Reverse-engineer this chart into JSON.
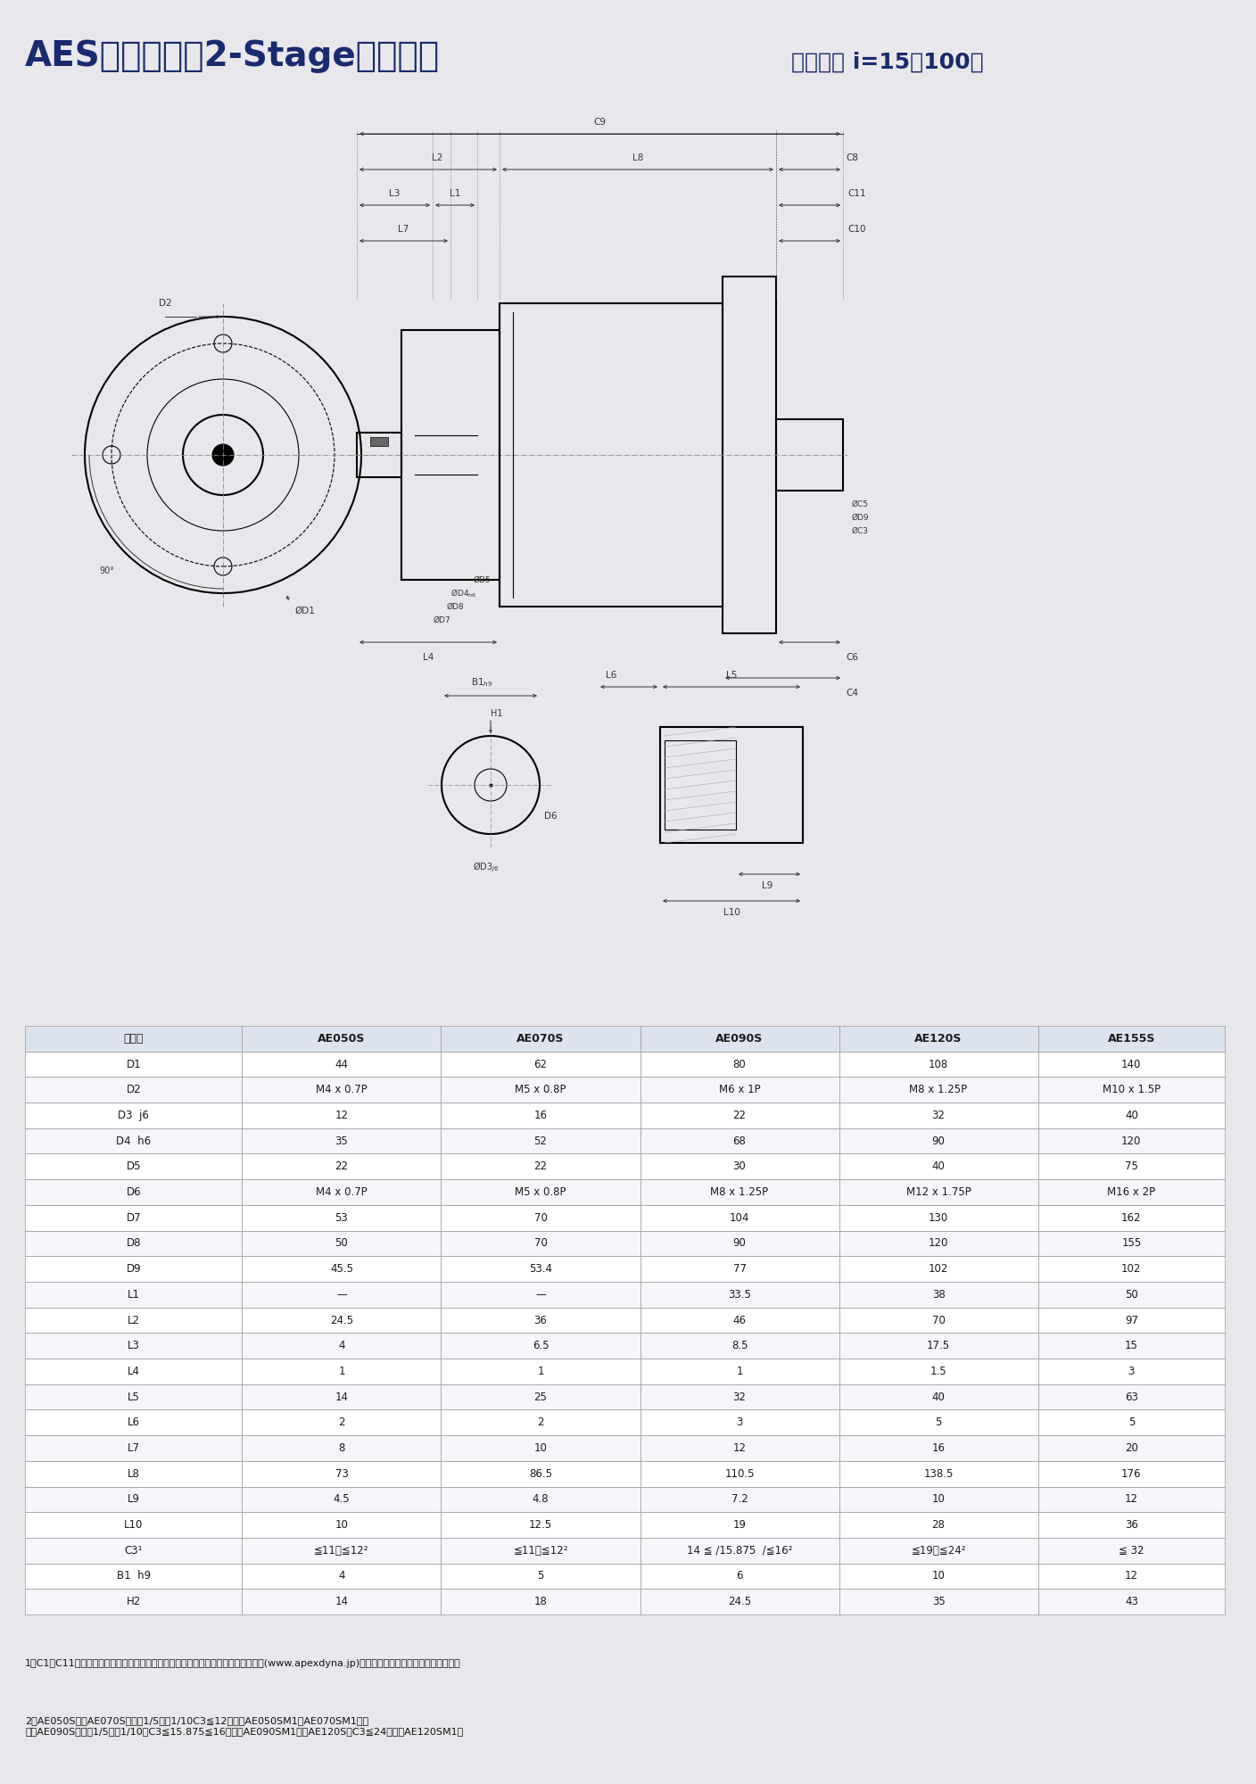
{
  "title": "AESシリーズ（2-Stage）　寸法（減速比 i=15〜100）",
  "title_part1": "AESシリーズ（2-Stage）　寸法",
  "title_part2": "（減速比 i=15〜100）",
  "bg_color": "#e8e8ec",
  "table_header": [
    "型　式",
    "AE050S",
    "AE070S",
    "AE090S",
    "AE120S",
    "AE155S"
  ],
  "table_rows": [
    [
      "D1",
      "44",
      "62",
      "80",
      "108",
      "140"
    ],
    [
      "D2",
      "M4 x 0.7P",
      "M5 x 0.8P",
      "M6 x 1P",
      "M8 x 1.25P",
      "M10 x 1.5P"
    ],
    [
      "D3  j6",
      "12",
      "16",
      "22",
      "32",
      "40"
    ],
    [
      "D4  h6",
      "35",
      "52",
      "68",
      "90",
      "120"
    ],
    [
      "D5",
      "22",
      "22",
      "30",
      "40",
      "75"
    ],
    [
      "D6",
      "M4 x 0.7P",
      "M5 x 0.8P",
      "M8 x 1.25P",
      "M12 x 1.75P",
      "M16 x 2P"
    ],
    [
      "D7",
      "53",
      "70",
      "104",
      "130",
      "162"
    ],
    [
      "D8",
      "50",
      "70",
      "90",
      "120",
      "155"
    ],
    [
      "D9",
      "45.5",
      "53.4",
      "77",
      "102",
      "102"
    ],
    [
      "L1",
      "—",
      "—",
      "33.5",
      "38",
      "50"
    ],
    [
      "L2",
      "24.5",
      "36",
      "46",
      "70",
      "97"
    ],
    [
      "L3",
      "4",
      "6.5",
      "8.5",
      "17.5",
      "15"
    ],
    [
      "L4",
      "1",
      "1",
      "1",
      "1.5",
      "3"
    ],
    [
      "L5",
      "14",
      "25",
      "32",
      "40",
      "63"
    ],
    [
      "L6",
      "2",
      "2",
      "3",
      "5",
      "5"
    ],
    [
      "L7",
      "8",
      "10",
      "12",
      "16",
      "20"
    ],
    [
      "L8",
      "73",
      "86.5",
      "110.5",
      "138.5",
      "176"
    ],
    [
      "L9",
      "4.5",
      "4.8",
      "7.2",
      "10",
      "12"
    ],
    [
      "L10",
      "10",
      "12.5",
      "19",
      "28",
      "36"
    ],
    [
      "C3¹",
      "≦11／≦12²",
      "≦11／≦12²",
      "14 ≦ /15.875  /≦16²",
      "≦19／≦24²",
      "≦ 32"
    ],
    [
      "B1  h9",
      "4",
      "5",
      "6",
      "10",
      "12"
    ],
    [
      "H2",
      "14",
      "18",
      "24.5",
      "35",
      "43"
    ]
  ],
  "footnote1": "1．C1～C11は取り付けるモータによって変わります。寸法の詳細はホームページ上(www.apexdyna.jp)のデザインツールでご確認ください。",
  "footnote2": "2．AE050S及びAE070Sの速比1/5及び1/10C3≦12あり（AE050SM1／AE070SM1）、\n　　AE090Sの速比1/5及び1/10はC3≦15.875≦16あり（AE090SM1）、AE120SはC3≦24あり（AE120SM1）"
}
